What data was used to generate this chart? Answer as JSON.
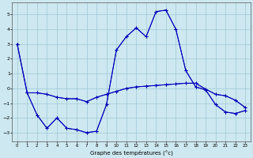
{
  "xlabel": "Graphe des températures (°c)",
  "bg_color": "#cde8f0",
  "line_color": "#0000bb",
  "grid_color": "#9ec8d8",
  "xlim": [
    -0.5,
    23.5
  ],
  "ylim": [
    -3.6,
    5.8
  ],
  "yticks": [
    -3,
    -2,
    -1,
    0,
    1,
    2,
    3,
    4,
    5
  ],
  "xticks": [
    0,
    1,
    2,
    3,
    4,
    5,
    6,
    7,
    8,
    9,
    10,
    11,
    12,
    13,
    14,
    15,
    16,
    17,
    18,
    19,
    20,
    21,
    22,
    23
  ],
  "curve1_x": [
    0,
    1,
    2,
    3,
    4,
    5,
    6,
    7,
    8,
    9,
    10,
    11,
    12,
    13,
    14,
    15,
    16,
    17,
    18,
    19,
    20,
    21,
    22,
    23
  ],
  "curve1_y": [
    3.0,
    -0.3,
    -0.3,
    -0.4,
    -0.6,
    -0.7,
    -0.7,
    -0.9,
    -0.6,
    -0.4,
    -0.2,
    0.0,
    0.1,
    0.15,
    0.2,
    0.25,
    0.3,
    0.35,
    0.35,
    -0.05,
    -0.4,
    -0.5,
    -0.8,
    -1.3
  ],
  "curve2_x": [
    0,
    1,
    2,
    3,
    4,
    5,
    6,
    7,
    8,
    9,
    10,
    11,
    12,
    13,
    14,
    15,
    16,
    17,
    18,
    19,
    20,
    21,
    22,
    23
  ],
  "curve2_y": [
    3.0,
    -0.3,
    -1.8,
    -2.7,
    -2.0,
    -2.7,
    -2.8,
    -3.0,
    -2.9,
    -1.1,
    2.6,
    3.5,
    4.1,
    3.5,
    5.2,
    5.3,
    4.0,
    1.2,
    0.1,
    -0.1,
    -1.1,
    -1.6,
    -1.7,
    -1.5
  ],
  "curve3_x": [
    1,
    2,
    3,
    4,
    5,
    6,
    7,
    8,
    9,
    10,
    11,
    12,
    13,
    14,
    15,
    16,
    17,
    18,
    19,
    20,
    21,
    22,
    23
  ],
  "curve3_y": [
    -0.3,
    -1.8,
    -2.7,
    -2.0,
    -2.7,
    -2.8,
    -3.0,
    -2.9,
    -1.1,
    2.6,
    3.5,
    4.1,
    3.5,
    5.2,
    5.3,
    4.0,
    1.2,
    0.1,
    -0.1,
    -1.1,
    -1.6,
    -1.7,
    -1.5
  ],
  "curve4_x": [
    1,
    2,
    3,
    4,
    5,
    6,
    7,
    8,
    9,
    10,
    11,
    12,
    13,
    14,
    15,
    16,
    17,
    18,
    19,
    20,
    21,
    22,
    23
  ],
  "curve4_y": [
    -0.3,
    -0.3,
    -0.4,
    -0.6,
    -0.7,
    -0.7,
    -0.9,
    -0.6,
    -0.4,
    -0.2,
    0.0,
    0.1,
    0.15,
    0.2,
    0.25,
    0.3,
    0.35,
    0.35,
    -0.05,
    -0.4,
    -0.5,
    -0.8,
    -1.3
  ]
}
